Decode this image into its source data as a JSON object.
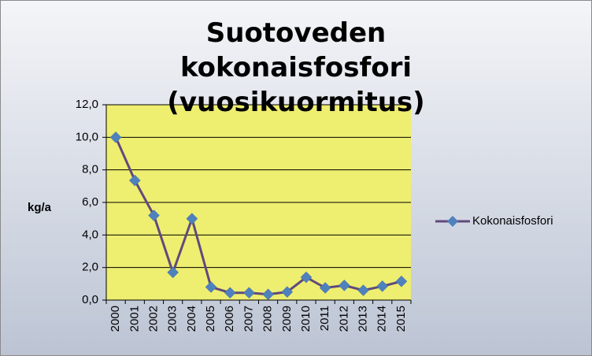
{
  "chart_data": {
    "type": "line",
    "title": "Suotoveden kokonaisfosfori (vuosikuormitus)",
    "ylabel": "kg/a",
    "categories": [
      "2000",
      "2001",
      "2002",
      "2003",
      "2004",
      "2005",
      "2006",
      "2007",
      "2008",
      "2009",
      "2010",
      "2011",
      "2012",
      "2013",
      "2014",
      "2015"
    ],
    "series": [
      {
        "name": "Kokonaisfosfori",
        "color": "#604a7b",
        "marker_color": "#4f81bd",
        "values": [
          10.0,
          7.35,
          5.2,
          1.7,
          5.0,
          0.8,
          0.45,
          0.45,
          0.35,
          0.5,
          1.4,
          0.75,
          0.9,
          0.6,
          0.85,
          1.15
        ]
      }
    ],
    "ylim": [
      0,
      12
    ],
    "yticks": [
      {
        "value": 0,
        "label": "0,0"
      },
      {
        "value": 2,
        "label": "2,0"
      },
      {
        "value": 4,
        "label": "4,0"
      },
      {
        "value": 6,
        "label": "6,0"
      },
      {
        "value": 8,
        "label": "8,0"
      },
      {
        "value": 10,
        "label": "10,0"
      },
      {
        "value": 12,
        "label": "12,0"
      }
    ],
    "grid": true,
    "legend": "right",
    "plot_background": "#eeee70"
  }
}
